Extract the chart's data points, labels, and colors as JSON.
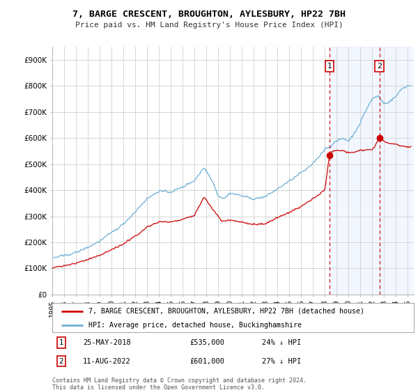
{
  "title1": "7, BARGE CRESCENT, BROUGHTON, AYLESBURY, HP22 7BH",
  "title2": "Price paid vs. HM Land Registry's House Price Index (HPI)",
  "ylim": [
    0,
    950000
  ],
  "hpi_color": "#6baed6",
  "price_color": "#cc0000",
  "vline_color": "#cc0000",
  "shade_color": "#ddeeff",
  "marker1_date": 2018.38,
  "marker2_date": 2022.6,
  "sale1_date": "25-MAY-2018",
  "sale1_price": "£535,000",
  "sale1_note": "24% ↓ HPI",
  "sale2_date": "11-AUG-2022",
  "sale2_price": "£601,000",
  "sale2_note": "27% ↓ HPI",
  "legend_label1": "7, BARGE CRESCENT, BROUGHTON, AYLESBURY, HP22 7BH (detached house)",
  "legend_label2": "HPI: Average price, detached house, Buckinghamshire",
  "footnote": "Contains HM Land Registry data © Crown copyright and database right 2024.\nThis data is licensed under the Open Government Licence v3.0.",
  "background_color": "#ffffff",
  "grid_color": "#d0d0d0"
}
